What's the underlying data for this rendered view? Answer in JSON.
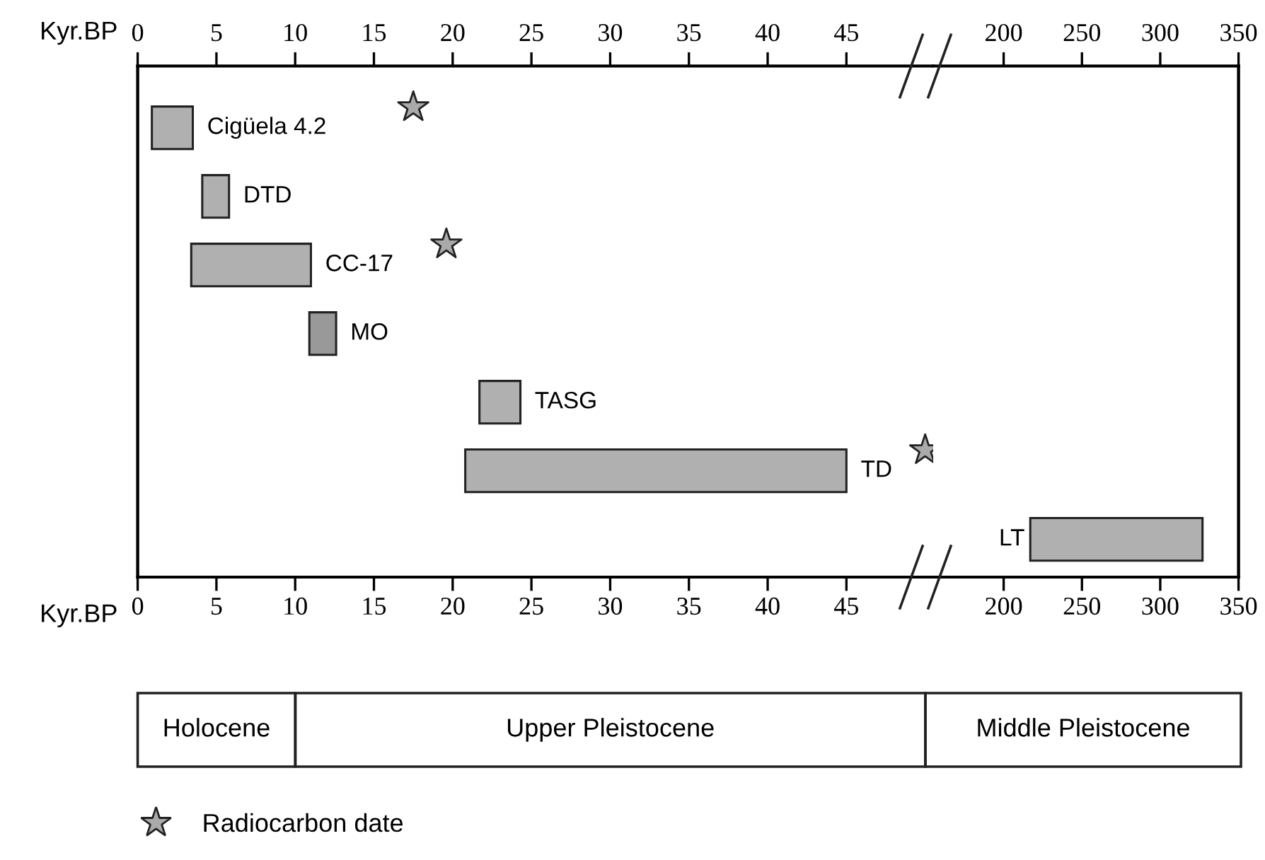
{
  "chart_data": [
    {
      "type": "bar",
      "orientation": "horizontal",
      "xlabel": "Kyr.BP",
      "x2label": "Kyr.BP",
      "tick_labels": "x",
      "legend": "bottom left",
      "categories": [
        "Cigüela 4.2",
        "DTD",
        "CC-17",
        "MO",
        "TASG",
        "TD",
        null
      ],
      "xlim": [
        0,
        50.5
      ],
      "xticks": [
        0,
        5,
        10,
        15,
        20,
        25,
        30,
        35,
        40,
        45
      ],
      "x2lim": [
        0,
        50.5
      ],
      "x2ticks": [
        0,
        5,
        10,
        15,
        20,
        25,
        30,
        35,
        40,
        45
      ],
      "series": [
        {
          "type": "bar",
          "colors": [
            "#b0b0b0",
            "#b0b0b0",
            "#b0b0b0",
            "#999999",
            "#b0b0b0",
            "#b0b0b0",
            "#b0b0b0"
          ],
          "base": [
            0.9,
            4.1,
            3.4,
            10.9,
            21.7,
            20.8,
            null
          ],
          "values": [
            2.6,
            1.7,
            7.6,
            1.7,
            2.6,
            24.2,
            null
          ]
        },
        {
          "type": "scatter",
          "name": "Radiocarbon date",
          "color": "#aaaaaa",
          "marker": "star",
          "values": [
            17.5,
            null,
            19.6,
            null,
            null,
            50.0,
            null
          ]
        }
      ]
    },
    {
      "type": "bar",
      "orientation": "horizontal",
      "tick_labels": "x",
      "categories": [
        null,
        null,
        null,
        null,
        null,
        null,
        "LT"
      ],
      "xlim": [
        155,
        350
      ],
      "xticks": [
        200,
        250,
        300,
        350
      ],
      "x2lim": [
        155,
        350
      ],
      "x2ticks": [
        200,
        250,
        300,
        350
      ],
      "series": [
        {
          "type": "bar",
          "colors": [
            "#b0b0b0",
            "#b0b0b0",
            "#b0b0b0",
            "#b0b0b0",
            "#b0b0b0",
            "#b0b0b0",
            "#b0b0b0"
          ],
          "base": [
            null,
            null,
            null,
            null,
            null,
            null,
            217
          ],
          "values": [
            null,
            null,
            null,
            null,
            null,
            null,
            110
          ]
        }
      ]
    },
    {
      "type": "other",
      "annotations": [
        "Holocene",
        "Upper Pleistocene",
        "Middle Pleistocene"
      ]
    }
  ]
}
